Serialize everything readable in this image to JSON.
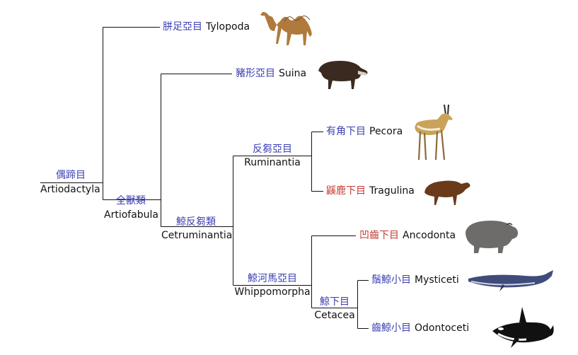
{
  "tree": {
    "root": {
      "zh": "偶蹄目",
      "en": "Artiodactyla"
    },
    "artiofabula": {
      "zh": "全獸類",
      "en": "Artiofabula"
    },
    "cetruminantia": {
      "zh": "鯨反芻類",
      "en": "Cetruminantia"
    },
    "ruminantia": {
      "zh": "反芻亞目",
      "en": "Ruminantia"
    },
    "whippomorpha": {
      "zh": "鯨河馬亞目",
      "en": "Whippomorpha"
    },
    "cetacea": {
      "zh": "鯨下目",
      "en": "Cetacea"
    }
  },
  "leaves": [
    {
      "zh": "胼足亞目",
      "en": "Tylopoda",
      "status": "normal",
      "image": "camel"
    },
    {
      "zh": "豬形亞目",
      "en": "Suina",
      "status": "normal",
      "image": "wild-boar"
    },
    {
      "zh": "有角下目",
      "en": "Pecora",
      "status": "normal",
      "image": "gazelle"
    },
    {
      "zh": "鼷鹿下目",
      "en": "Tragulina",
      "status": "highlight",
      "image": "chevrotain"
    },
    {
      "zh": "凹齒下目",
      "en": "Ancodonta",
      "status": "highlight",
      "image": "hippopotamus"
    },
    {
      "zh": "鬚鯨小目",
      "en": "Mysticeti",
      "status": "normal",
      "image": "blue-whale"
    },
    {
      "zh": "齒鯨小目",
      "en": "Odontoceti",
      "status": "normal",
      "image": "orca"
    }
  ],
  "colors": {
    "label_blue": "#3c3fb4",
    "label_red": "#c43a32",
    "line": "#111111"
  }
}
